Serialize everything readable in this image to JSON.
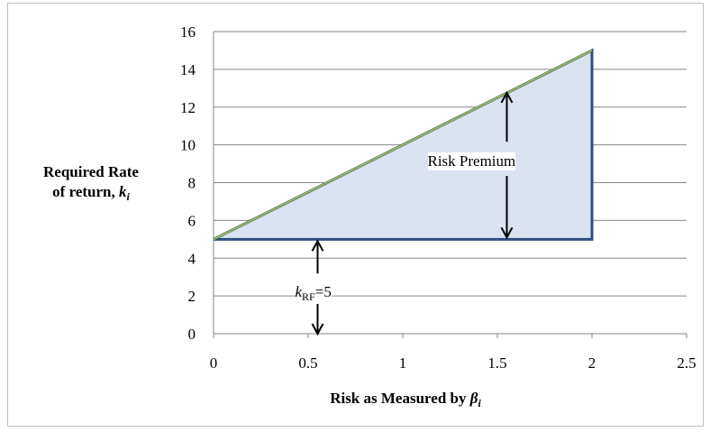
{
  "chart_data": {
    "type": "area",
    "x_ticks": [
      "0",
      "0.5",
      "1",
      "1.5",
      "2",
      "2.5"
    ],
    "y_ticks": [
      "0",
      "2",
      "4",
      "6",
      "8",
      "10",
      "12",
      "14",
      "16"
    ],
    "xlim": [
      0,
      2.5
    ],
    "ylim": [
      0,
      16
    ],
    "grid": "horizontal",
    "ylabel_line1": "Required Rate",
    "ylabel_line2_text": "of return, ",
    "ylabel_line2_var": "k",
    "ylabel_line2_sub": "i",
    "xlabel_text": "Risk as Measured by ",
    "xlabel_var": "β",
    "xlabel_sub": "i",
    "series": [
      {
        "values": [
          [
            0,
            5
          ],
          [
            2,
            15
          ]
        ],
        "color": "#9bbb59"
      }
    ],
    "region": {
      "polygon": [
        [
          0,
          5
        ],
        [
          2,
          15
        ],
        [
          2,
          5
        ]
      ],
      "fill": "#dbe3f0",
      "stroke": "#2e4e7e"
    },
    "annotations": {
      "risk_premium": {
        "label": "Risk Premium",
        "x": 1.55,
        "y_top": 12.9,
        "y_bottom": 5.0
      },
      "krf": {
        "var": "k",
        "sub": "RF",
        "value": "=5",
        "x": 0.55,
        "y_top": 5.0,
        "y_bottom": 0
      }
    }
  }
}
